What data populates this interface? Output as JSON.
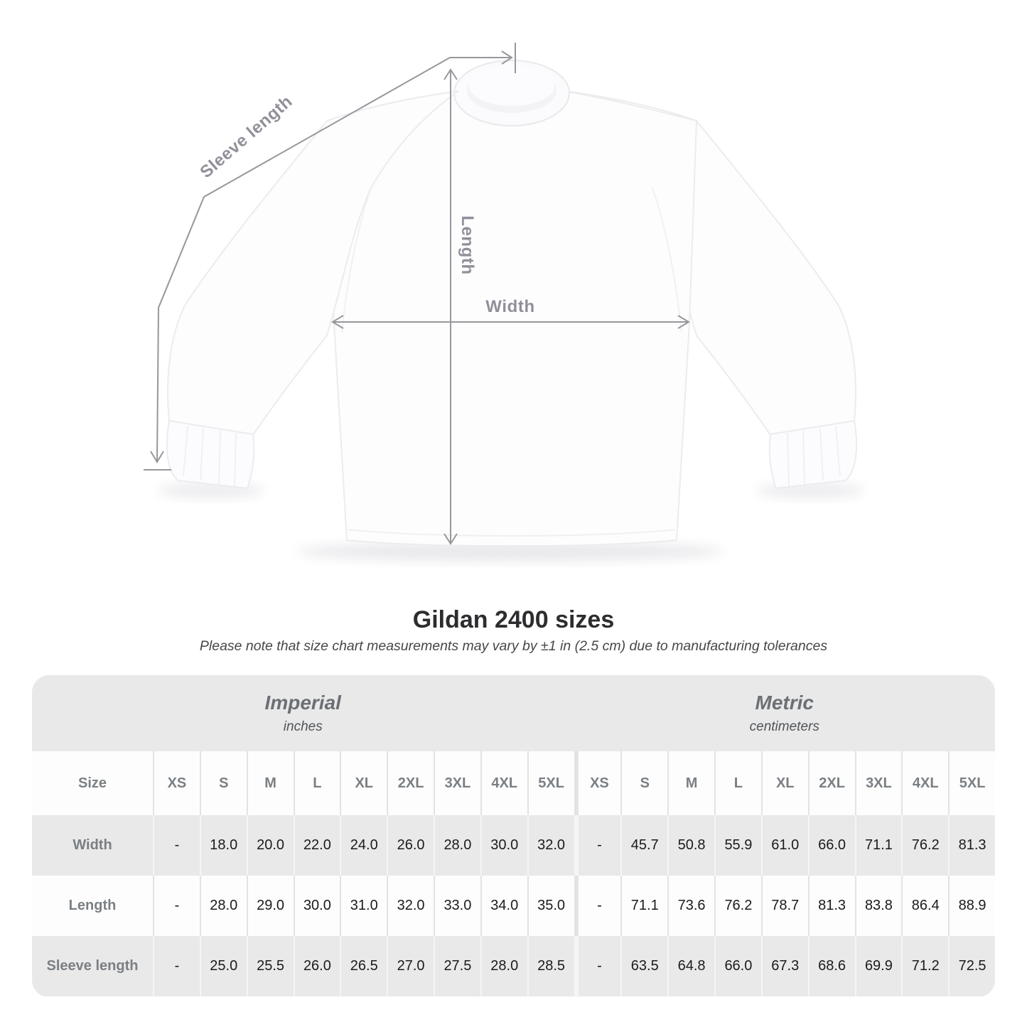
{
  "diagram": {
    "sleeve_length_label": "Sleeve length",
    "length_label": "Length",
    "width_label": "Width"
  },
  "title": "Gildan 2400 sizes",
  "subtitle": "Please note that size chart measurements may vary by ±1 in (2.5 cm) due to manufacturing tolerances",
  "chart_data": {
    "type": "table",
    "title": "Gildan 2400 sizes",
    "size_header_label": "Size",
    "groups": [
      {
        "name": "Imperial",
        "unit": "inches"
      },
      {
        "name": "Metric",
        "unit": "centimeters"
      }
    ],
    "sizes": [
      "XS",
      "S",
      "M",
      "L",
      "XL",
      "2XL",
      "3XL",
      "4XL",
      "5XL"
    ],
    "rows": [
      {
        "label": "Width",
        "imperial": [
          "-",
          "18.0",
          "20.0",
          "22.0",
          "24.0",
          "26.0",
          "28.0",
          "30.0",
          "32.0"
        ],
        "metric": [
          "-",
          "45.7",
          "50.8",
          "55.9",
          "61.0",
          "66.0",
          "71.1",
          "76.2",
          "81.3"
        ]
      },
      {
        "label": "Length",
        "imperial": [
          "-",
          "28.0",
          "29.0",
          "30.0",
          "31.0",
          "32.0",
          "33.0",
          "34.0",
          "35.0"
        ],
        "metric": [
          "-",
          "71.1",
          "73.6",
          "76.2",
          "78.7",
          "81.3",
          "83.8",
          "86.4",
          "88.9"
        ]
      },
      {
        "label": "Sleeve length",
        "imperial": [
          "-",
          "25.0",
          "25.5",
          "26.0",
          "26.5",
          "27.0",
          "27.5",
          "28.0",
          "28.5"
        ],
        "metric": [
          "-",
          "63.5",
          "64.8",
          "66.0",
          "67.3",
          "68.6",
          "69.9",
          "71.2",
          "72.5"
        ]
      }
    ]
  },
  "colors": {
    "table_band_gray": "#e9e9ea",
    "header_text_gray": "#7a7f83",
    "value_text": "#1b1b1d",
    "measurement_line": "#97979c",
    "measurement_label": "#90909a",
    "title_text": "#2d2d2f"
  }
}
